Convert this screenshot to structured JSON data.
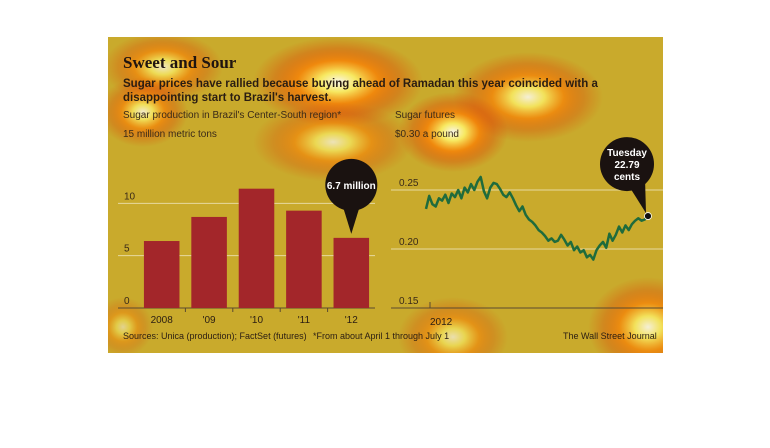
{
  "title": "Sweet and Sour",
  "subtitle": "Sugar prices have rallied because buying ahead of Ramadan this year coincided with a disappointing start to Brazil's harvest.",
  "sources": "Sources: Unica (production); FactSet (futures)",
  "footnote": "*From about April 1 through July 1",
  "credit": "The Wall Street Journal",
  "colors": {
    "background": "#c9aa2c",
    "bar": "#a3262a",
    "line": "#1f6b3c",
    "callout": "#1a1210"
  },
  "chart_data": [
    {
      "type": "bar",
      "title": "Sugar production in Brazil's Center-South region*",
      "unit_label": "15 million metric tons",
      "categories": [
        "2008",
        "'09",
        "'10",
        "'11",
        "'12"
      ],
      "values": [
        6.4,
        8.7,
        11.4,
        9.3,
        6.7
      ],
      "yticks": [
        0,
        5,
        10
      ],
      "ylim": [
        0,
        15
      ],
      "callout": "6.7 million",
      "grid": true
    },
    {
      "type": "line",
      "title": "Sugar futures",
      "unit_label": "$0.30 a pound",
      "yticks": [
        "0.15",
        "0.20",
        "0.25"
      ],
      "ylim": [
        0.15,
        0.3
      ],
      "xlabel_ticks": [
        "2012"
      ],
      "callout": [
        "Tuesday",
        "22.79",
        "cents"
      ],
      "last_value": 0.2279,
      "x": [
        0,
        1,
        2,
        3,
        4,
        5,
        6,
        7,
        8,
        9,
        10,
        11,
        12,
        13,
        14,
        15,
        16,
        17,
        18,
        19,
        20,
        21,
        22,
        23,
        24,
        25,
        26,
        27,
        28,
        29,
        30,
        31,
        32,
        33,
        34,
        35,
        36,
        37,
        38,
        39,
        40,
        41,
        42,
        43,
        44,
        45,
        46,
        47,
        48,
        49,
        50,
        51,
        52,
        53,
        54,
        55,
        56,
        57,
        58,
        59,
        60,
        61,
        62,
        63,
        64,
        65,
        66,
        67,
        68,
        69
      ],
      "y": [
        0.234,
        0.245,
        0.238,
        0.236,
        0.243,
        0.241,
        0.246,
        0.239,
        0.247,
        0.244,
        0.25,
        0.243,
        0.252,
        0.248,
        0.255,
        0.25,
        0.257,
        0.261,
        0.249,
        0.243,
        0.252,
        0.256,
        0.255,
        0.251,
        0.246,
        0.244,
        0.248,
        0.243,
        0.237,
        0.232,
        0.236,
        0.229,
        0.225,
        0.223,
        0.22,
        0.216,
        0.214,
        0.211,
        0.207,
        0.209,
        0.206,
        0.207,
        0.212,
        0.208,
        0.203,
        0.206,
        0.199,
        0.202,
        0.197,
        0.199,
        0.193,
        0.195,
        0.191,
        0.199,
        0.203,
        0.206,
        0.201,
        0.213,
        0.207,
        0.212,
        0.219,
        0.214,
        0.22,
        0.216,
        0.221,
        0.224,
        0.226,
        0.224,
        0.225,
        0.2279
      ]
    }
  ]
}
